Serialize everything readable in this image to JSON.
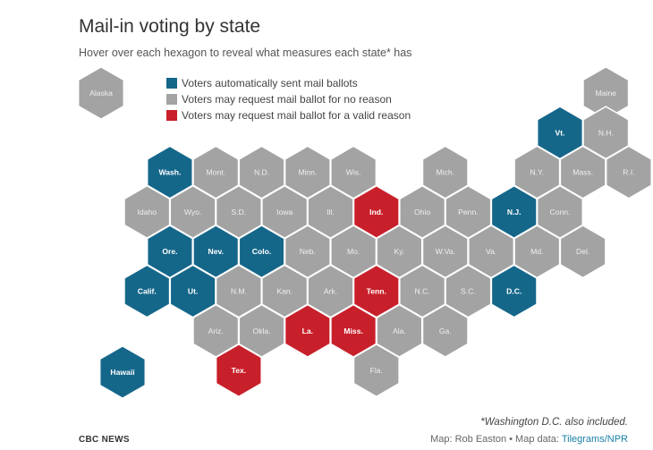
{
  "title": "Mail-in voting by state",
  "subtitle": "Hover over each hexagon to reveal what measures each state* has",
  "colors": {
    "auto": "#15678a",
    "no_reason": "#a3a3a3",
    "valid_reason": "#c8202b",
    "label_light": "#ffffff",
    "label_dark": "#efefef"
  },
  "legend": [
    {
      "key": "auto",
      "label": "Voters automatically sent mail ballots"
    },
    {
      "key": "no_reason",
      "label": "Voters may request mail ballot for no reason"
    },
    {
      "key": "valid_reason",
      "label": "Voters may request mail ballot for a valid reason"
    }
  ],
  "states": [
    {
      "label": "Alaska",
      "row": 0,
      "col": 0,
      "cat": "no_reason"
    },
    {
      "label": "Maine",
      "row": 0,
      "col": 11,
      "cat": "no_reason"
    },
    {
      "label": "Vt.",
      "row": 1,
      "col": 10,
      "cat": "auto"
    },
    {
      "label": "N.H.",
      "row": 1,
      "col": 11,
      "cat": "no_reason"
    },
    {
      "label": "Wash.",
      "row": 2,
      "col": 1,
      "cat": "auto"
    },
    {
      "label": "Mont.",
      "row": 2,
      "col": 2,
      "cat": "no_reason"
    },
    {
      "label": "N.D.",
      "row": 2,
      "col": 3,
      "cat": "no_reason"
    },
    {
      "label": "Minn.",
      "row": 2,
      "col": 4,
      "cat": "no_reason"
    },
    {
      "label": "Wis.",
      "row": 2,
      "col": 5,
      "cat": "no_reason"
    },
    {
      "label": "Mich.",
      "row": 2,
      "col": 7,
      "cat": "no_reason"
    },
    {
      "label": "N.Y.",
      "row": 2,
      "col": 9,
      "cat": "no_reason"
    },
    {
      "label": "Mass.",
      "row": 2,
      "col": 10,
      "cat": "no_reason"
    },
    {
      "label": "R.I.",
      "row": 2,
      "col": 11,
      "cat": "no_reason"
    },
    {
      "label": "Idaho",
      "row": 3,
      "col": 1,
      "cat": "no_reason"
    },
    {
      "label": "Wyo.",
      "row": 3,
      "col": 2,
      "cat": "no_reason"
    },
    {
      "label": "S.D.",
      "row": 3,
      "col": 3,
      "cat": "no_reason"
    },
    {
      "label": "Iowa",
      "row": 3,
      "col": 4,
      "cat": "no_reason"
    },
    {
      "label": "Ill.",
      "row": 3,
      "col": 5,
      "cat": "no_reason"
    },
    {
      "label": "Ind.",
      "row": 3,
      "col": 6,
      "cat": "valid_reason"
    },
    {
      "label": "Ohio",
      "row": 3,
      "col": 7,
      "cat": "no_reason"
    },
    {
      "label": "Penn.",
      "row": 3,
      "col": 8,
      "cat": "no_reason"
    },
    {
      "label": "N.J.",
      "row": 3,
      "col": 9,
      "cat": "auto"
    },
    {
      "label": "Conn.",
      "row": 3,
      "col": 10,
      "cat": "no_reason"
    },
    {
      "label": "Ore.",
      "row": 4,
      "col": 1,
      "cat": "auto"
    },
    {
      "label": "Nev.",
      "row": 4,
      "col": 2,
      "cat": "auto"
    },
    {
      "label": "Colo.",
      "row": 4,
      "col": 3,
      "cat": "auto"
    },
    {
      "label": "Neb.",
      "row": 4,
      "col": 4,
      "cat": "no_reason"
    },
    {
      "label": "Mo.",
      "row": 4,
      "col": 5,
      "cat": "no_reason"
    },
    {
      "label": "Ky.",
      "row": 4,
      "col": 6,
      "cat": "no_reason"
    },
    {
      "label": "W.Va.",
      "row": 4,
      "col": 7,
      "cat": "no_reason"
    },
    {
      "label": "Va.",
      "row": 4,
      "col": 8,
      "cat": "no_reason"
    },
    {
      "label": "Md.",
      "row": 4,
      "col": 9,
      "cat": "no_reason"
    },
    {
      "label": "Del.",
      "row": 4,
      "col": 10,
      "cat": "no_reason"
    },
    {
      "label": "Calif.",
      "row": 5,
      "col": 1,
      "cat": "auto"
    },
    {
      "label": "Ut.",
      "row": 5,
      "col": 2,
      "cat": "auto"
    },
    {
      "label": "N.M.",
      "row": 5,
      "col": 3,
      "cat": "no_reason"
    },
    {
      "label": "Kan.",
      "row": 5,
      "col": 4,
      "cat": "no_reason"
    },
    {
      "label": "Ark.",
      "row": 5,
      "col": 5,
      "cat": "no_reason"
    },
    {
      "label": "Tenn.",
      "row": 5,
      "col": 6,
      "cat": "valid_reason"
    },
    {
      "label": "N.C.",
      "row": 5,
      "col": 7,
      "cat": "no_reason"
    },
    {
      "label": "S.C.",
      "row": 5,
      "col": 8,
      "cat": "no_reason"
    },
    {
      "label": "D.C.",
      "row": 5,
      "col": 9,
      "cat": "auto"
    },
    {
      "label": "Ariz.",
      "row": 6,
      "col": 2,
      "cat": "no_reason"
    },
    {
      "label": "Okla.",
      "row": 6,
      "col": 3,
      "cat": "no_reason"
    },
    {
      "label": "La.",
      "row": 6,
      "col": 4,
      "cat": "valid_reason"
    },
    {
      "label": "Miss.",
      "row": 6,
      "col": 5,
      "cat": "valid_reason"
    },
    {
      "label": "Ala.",
      "row": 6,
      "col": 6,
      "cat": "no_reason"
    },
    {
      "label": "Ga.",
      "row": 6,
      "col": 7,
      "cat": "no_reason"
    },
    {
      "label": "Tex.",
      "row": 7,
      "col": 3,
      "cat": "valid_reason"
    },
    {
      "label": "Fla.",
      "row": 7,
      "col": 6,
      "cat": "no_reason"
    },
    {
      "label": "Hawaii",
      "row": 7,
      "col": 0,
      "cat": "auto"
    }
  ],
  "footnote": "*Washington D.C. also included.",
  "brand": "CBC NEWS",
  "credits": {
    "prefix": "Map: Rob Easton • Map data: ",
    "link": "Tilegrams/NPR"
  }
}
